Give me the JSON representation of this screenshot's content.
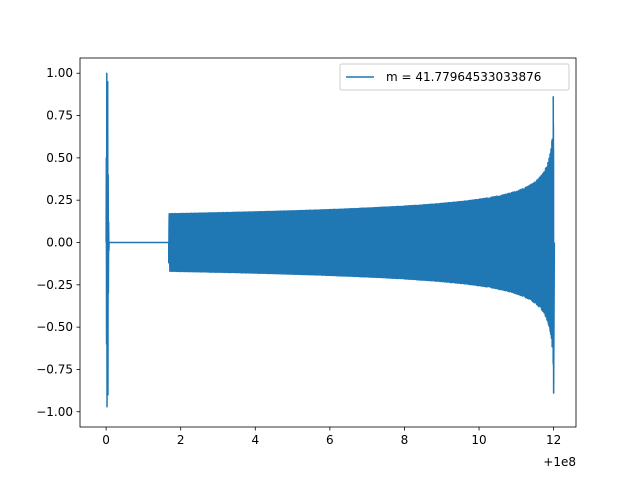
{
  "chart_data": {
    "type": "line",
    "title": "",
    "xlabel": "",
    "ylabel": "",
    "x_offset_label": "+1e8",
    "xlim": [
      -0.7,
      12.6
    ],
    "ylim": [
      -1.09,
      1.09
    ],
    "x_ticks": [
      0,
      2,
      4,
      6,
      8,
      10,
      12
    ],
    "x_tick_labels": [
      "0",
      "2",
      "4",
      "6",
      "8",
      "10",
      "12"
    ],
    "y_ticks": [
      -1.0,
      -0.75,
      -0.5,
      -0.25,
      0.0,
      0.25,
      0.5,
      0.75,
      1.0
    ],
    "y_tick_labels": [
      "−1.00",
      "−0.75",
      "−0.50",
      "−0.25",
      "0.00",
      "0.25",
      "0.50",
      "0.75",
      "1.00"
    ],
    "grid": false,
    "legend_position": "top-right",
    "series": [
      {
        "name": "m = 41.77964533033876",
        "color": "#1f77b4",
        "signal": {
          "initial_spike": {
            "x_start": 0.0,
            "x_end": 0.08,
            "max": 1.0,
            "min": -0.97
          },
          "flat_until": 1.68,
          "start_value": -0.12,
          "chirp": {
            "x_start": 1.68,
            "x_end": 12.0,
            "start_amplitude": 0.17,
            "end_amplitude_positive": 0.86,
            "end_amplitude_negative": -0.89
          }
        }
      }
    ]
  }
}
